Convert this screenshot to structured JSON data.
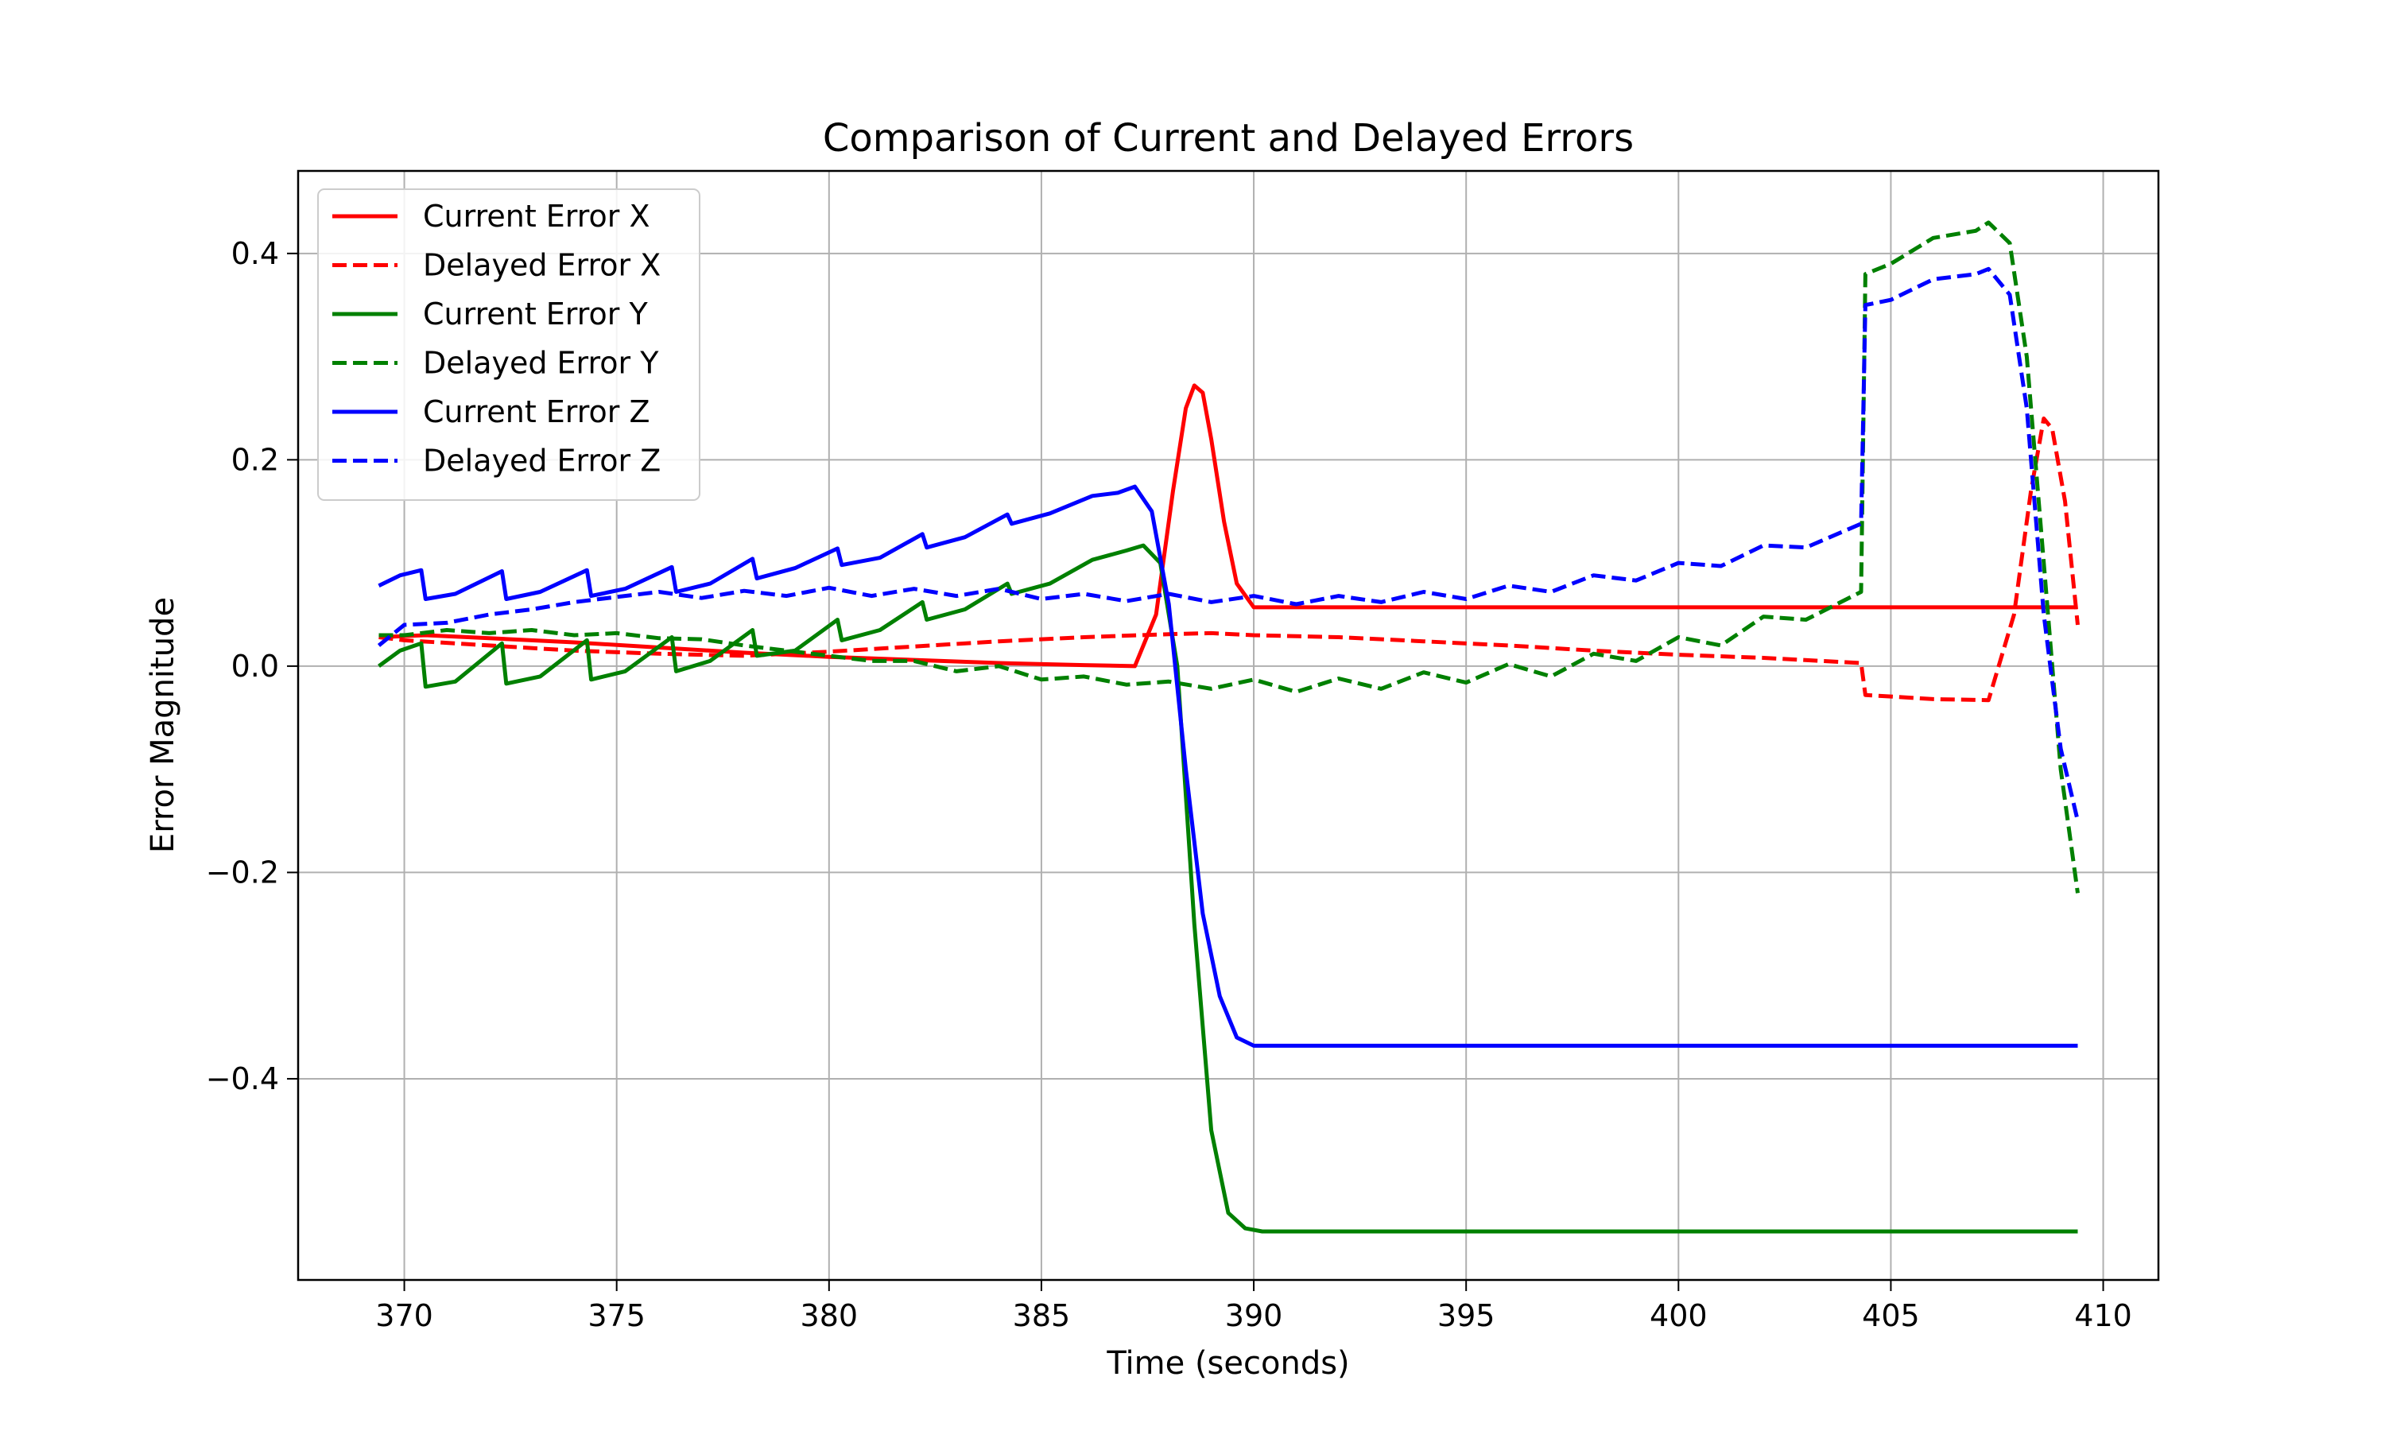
{
  "chart_data": {
    "type": "line",
    "title": "Comparison of Current and Delayed Errors",
    "xlabel": "Time (seconds)",
    "ylabel": "Error Magnitude",
    "xlim": [
      367.5,
      411.3
    ],
    "ylim": [
      -0.595,
      0.48
    ],
    "xticks": [
      370,
      375,
      380,
      385,
      390,
      395,
      400,
      405,
      410
    ],
    "xtick_labels": [
      "370",
      "375",
      "380",
      "385",
      "390",
      "395",
      "400",
      "405",
      "410"
    ],
    "yticks": [
      -0.4,
      -0.2,
      0.0,
      0.2,
      0.4
    ],
    "ytick_labels": [
      "−0.4",
      "−0.2",
      "0.0",
      "0.2",
      "0.4"
    ],
    "grid": true,
    "legend_position": "top-left",
    "series": [
      {
        "name": "Current Error X",
        "color": "#ff0000",
        "dash": "solid",
        "x": [
          369.4,
          370.5,
          372,
          374,
          376,
          378,
          380,
          382,
          384,
          386,
          387.2,
          387.7,
          388.1,
          388.4,
          388.6,
          388.8,
          389.0,
          389.3,
          389.6,
          390,
          395,
          400,
          405,
          409.4
        ],
        "y": [
          0.028,
          0.03,
          0.027,
          0.023,
          0.018,
          0.013,
          0.009,
          0.006,
          0.003,
          0.001,
          0.0,
          0.05,
          0.17,
          0.25,
          0.272,
          0.265,
          0.22,
          0.14,
          0.08,
          0.057,
          0.057,
          0.057,
          0.057,
          0.057
        ]
      },
      {
        "name": "Delayed Error X",
        "color": "#ff0000",
        "dash": "dashed",
        "x": [
          369.4,
          370,
          372,
          374,
          376,
          378,
          380,
          382,
          384,
          386,
          388,
          389,
          390,
          392,
          394,
          396,
          398,
          400,
          402,
          404.3,
          404.4,
          406,
          407.3,
          407.9,
          408.3,
          408.6,
          408.8,
          409.1,
          409.4
        ],
        "y": [
          0.028,
          0.025,
          0.02,
          0.015,
          0.012,
          0.01,
          0.014,
          0.019,
          0.024,
          0.028,
          0.031,
          0.032,
          0.03,
          0.028,
          0.024,
          0.02,
          0.015,
          0.011,
          0.008,
          0.003,
          -0.028,
          -0.032,
          -0.033,
          0.05,
          0.17,
          0.24,
          0.23,
          0.16,
          0.04
        ]
      },
      {
        "name": "Current Error Y",
        "color": "#008000",
        "dash": "solid",
        "x": [
          369.4,
          369.9,
          370.4,
          370.5,
          371.2,
          372.3,
          372.4,
          373.2,
          374.3,
          374.4,
          375.2,
          376.3,
          376.4,
          377.2,
          378.2,
          378.3,
          379.2,
          380.2,
          380.3,
          381.2,
          382.2,
          382.3,
          383.2,
          384.2,
          384.3,
          385.2,
          386.2,
          387.0,
          387.4,
          387.8,
          388.2,
          388.6,
          389.0,
          389.4,
          389.8,
          390.2,
          395,
          400,
          405,
          409.4
        ],
        "y": [
          0.0,
          0.015,
          0.022,
          -0.02,
          -0.015,
          0.022,
          -0.017,
          -0.01,
          0.025,
          -0.013,
          -0.005,
          0.028,
          -0.005,
          0.005,
          0.035,
          0.01,
          0.015,
          0.045,
          0.025,
          0.035,
          0.062,
          0.045,
          0.055,
          0.08,
          0.07,
          0.08,
          0.103,
          0.112,
          0.117,
          0.1,
          0.0,
          -0.25,
          -0.45,
          -0.53,
          -0.545,
          -0.548,
          -0.548,
          -0.548,
          -0.548,
          -0.548
        ]
      },
      {
        "name": "Delayed Error Y",
        "color": "#008000",
        "dash": "dashed",
        "x": [
          369.4,
          370,
          371,
          372,
          373,
          374,
          375,
          376,
          377,
          378,
          379,
          380,
          381,
          382,
          383,
          384,
          385,
          386,
          387,
          388,
          389,
          390,
          391,
          392,
          393,
          394,
          395,
          396,
          397,
          398,
          399,
          400,
          401,
          402,
          403,
          404.3,
          404.4,
          405,
          406,
          407,
          407.3,
          407.8,
          408.2,
          408.6,
          409.0,
          409.4
        ],
        "y": [
          0.03,
          0.03,
          0.035,
          0.032,
          0.035,
          0.03,
          0.032,
          0.027,
          0.026,
          0.02,
          0.015,
          0.01,
          0.005,
          0.005,
          -0.005,
          0.0,
          -0.013,
          -0.01,
          -0.018,
          -0.015,
          -0.022,
          -0.013,
          -0.025,
          -0.012,
          -0.022,
          -0.006,
          -0.016,
          0.002,
          -0.01,
          0.012,
          0.005,
          0.028,
          0.02,
          0.048,
          0.045,
          0.072,
          0.38,
          0.39,
          0.415,
          0.422,
          0.43,
          0.41,
          0.3,
          0.1,
          -0.1,
          -0.22
        ]
      },
      {
        "name": "Current Error Z",
        "color": "#0000ff",
        "dash": "solid",
        "x": [
          369.4,
          369.9,
          370.4,
          370.5,
          371.2,
          372.3,
          372.4,
          373.2,
          374.3,
          374.4,
          375.2,
          376.3,
          376.4,
          377.2,
          378.2,
          378.3,
          379.2,
          380.2,
          380.3,
          381.2,
          382.2,
          382.3,
          383.2,
          384.2,
          384.3,
          385.2,
          386.2,
          386.8,
          387.2,
          387.6,
          388.0,
          388.4,
          388.8,
          389.2,
          389.6,
          390.0,
          395,
          400,
          405,
          409.4
        ],
        "y": [
          0.078,
          0.088,
          0.093,
          0.065,
          0.07,
          0.092,
          0.065,
          0.072,
          0.093,
          0.068,
          0.075,
          0.096,
          0.072,
          0.08,
          0.104,
          0.085,
          0.095,
          0.114,
          0.098,
          0.105,
          0.128,
          0.115,
          0.125,
          0.147,
          0.138,
          0.148,
          0.165,
          0.168,
          0.174,
          0.15,
          0.06,
          -0.1,
          -0.24,
          -0.32,
          -0.36,
          -0.368,
          -0.368,
          -0.368,
          -0.368,
          -0.368
        ]
      },
      {
        "name": "Delayed Error Z",
        "color": "#0000ff",
        "dash": "dashed",
        "x": [
          369.4,
          370,
          371,
          372,
          373,
          374,
          375,
          376,
          377,
          378,
          379,
          380,
          381,
          382,
          383,
          384,
          385,
          386,
          387,
          388,
          389,
          390,
          391,
          392,
          393,
          394,
          395,
          396,
          397,
          398,
          399,
          400,
          401,
          402,
          403,
          404.3,
          404.4,
          405,
          406,
          407,
          407.3,
          407.8,
          408.2,
          408.6,
          409.0,
          409.4
        ],
        "y": [
          0.02,
          0.04,
          0.042,
          0.05,
          0.055,
          0.062,
          0.067,
          0.072,
          0.066,
          0.073,
          0.068,
          0.076,
          0.068,
          0.075,
          0.068,
          0.075,
          0.065,
          0.07,
          0.063,
          0.07,
          0.062,
          0.068,
          0.06,
          0.068,
          0.062,
          0.072,
          0.065,
          0.078,
          0.072,
          0.088,
          0.083,
          0.1,
          0.097,
          0.117,
          0.115,
          0.138,
          0.35,
          0.355,
          0.375,
          0.38,
          0.385,
          0.36,
          0.25,
          0.05,
          -0.08,
          -0.15
        ]
      }
    ]
  }
}
